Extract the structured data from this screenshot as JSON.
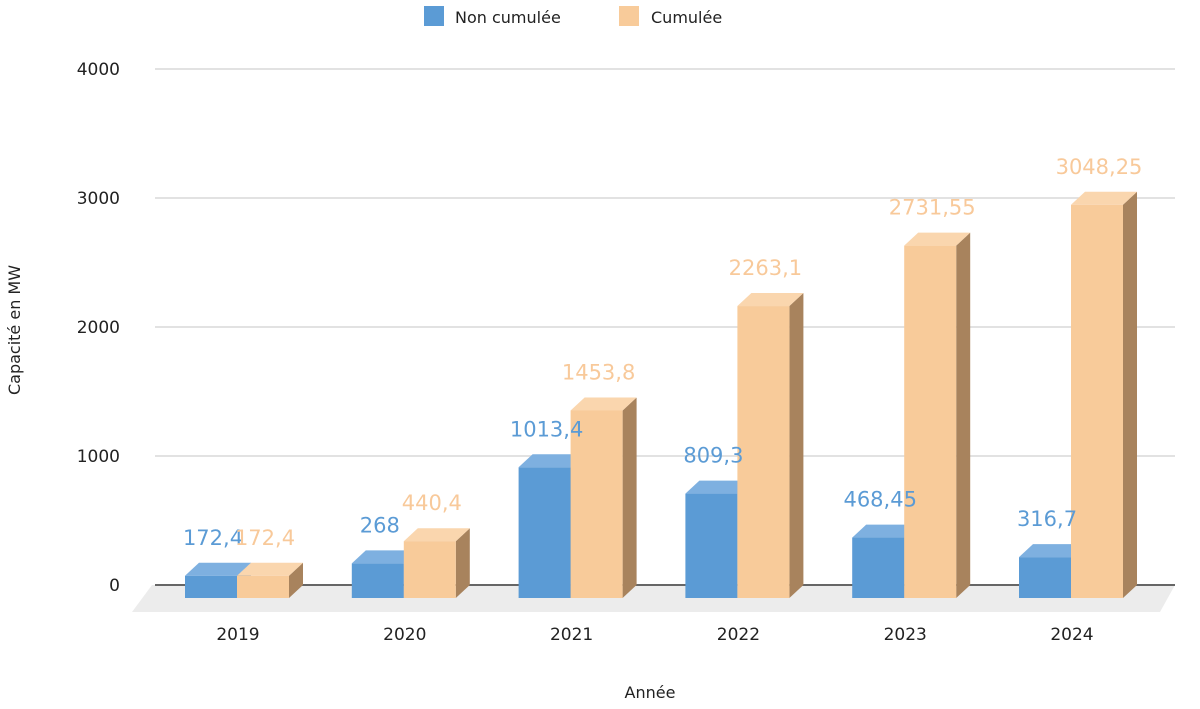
{
  "chart_data": {
    "type": "bar",
    "style": "3d-clustered",
    "categories": [
      "2019",
      "2020",
      "2021",
      "2022",
      "2023",
      "2024"
    ],
    "series": [
      {
        "name": "Non cumulée",
        "values": [
          172.4,
          268,
          1013.4,
          809.3,
          468.45,
          316.7
        ],
        "labels": [
          "172,4",
          "268",
          "1013,4",
          "809,3",
          "468,45",
          "316,7"
        ],
        "color": "#5b9bd5"
      },
      {
        "name": "Cumulée",
        "values": [
          172.4,
          440.4,
          1453.8,
          2263.1,
          2731.55,
          3048.25
        ],
        "labels": [
          "172,4",
          "440,4",
          "1453,8",
          "2263,1",
          "2731,55",
          "3048,25"
        ],
        "color": "#f8cb9a"
      }
    ],
    "xlabel": "Année",
    "ylabel": "Capacité en MW",
    "ylim": [
      0,
      4000
    ],
    "yticks": [
      "0",
      "1000",
      "2000",
      "3000",
      "4000"
    ],
    "grid": true,
    "legend": "top-center"
  }
}
